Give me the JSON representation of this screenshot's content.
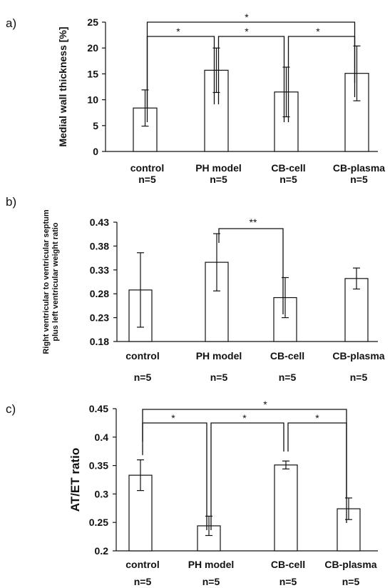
{
  "chart_data": [
    {
      "panel_label": "a)",
      "type": "bar",
      "ylabel": "Medial wall thickness [%]",
      "ylim": [
        0,
        25
      ],
      "yticks": [
        "0",
        "5",
        "10",
        "15",
        "20",
        "25"
      ],
      "categories": [
        "control",
        "PH  model",
        "CB-cell",
        "CB-plasma"
      ],
      "n_labels": [
        "n=5",
        "n=5",
        "n=5",
        "n=5"
      ],
      "values": [
        8.4,
        15.7,
        11.5,
        15.1
      ],
      "errors": [
        3.5,
        4.3,
        4.8,
        5.3
      ],
      "comparisons": [
        {
          "from": 0,
          "to": 1,
          "label": "*"
        },
        {
          "from": 1,
          "to": 2,
          "label": "*"
        },
        {
          "from": 2,
          "to": 3,
          "label": "*"
        },
        {
          "from": 0,
          "to": 3,
          "label": "*"
        }
      ]
    },
    {
      "panel_label": "b)",
      "type": "bar",
      "ylabel": [
        "Right ventricular to ventricular septum",
        "plus left ventricular weight ratio"
      ],
      "ylim": [
        0.18,
        0.43
      ],
      "yticks": [
        "0.18",
        "0.23",
        "0.28",
        "0.33",
        "0.38",
        "0.43"
      ],
      "categories": [
        "control",
        "PH  model",
        "CB-cell",
        "CB-plasma"
      ],
      "n_labels": [
        "n=5",
        "n=5",
        "n=5",
        "n=5"
      ],
      "values": [
        0.288,
        0.346,
        0.272,
        0.312
      ],
      "errors": [
        0.078,
        0.06,
        0.042,
        0.022
      ],
      "comparisons": [
        {
          "from": 1,
          "to": 2,
          "label": "**"
        }
      ]
    },
    {
      "panel_label": "c)",
      "type": "bar",
      "ylabel": "AT/ET ratio",
      "ylim": [
        0.2,
        0.45
      ],
      "yticks": [
        "0.2",
        "0.25",
        "0.3",
        "0.35",
        "0.4",
        "0.45"
      ],
      "categories": [
        "control",
        "PH model",
        "CB-cell",
        "CB-plasma"
      ],
      "n_labels": [
        "n=5",
        "n=5",
        "n=5",
        "n=5"
      ],
      "values": [
        0.333,
        0.244,
        0.351,
        0.274
      ],
      "errors": [
        0.027,
        0.017,
        0.007,
        0.019
      ],
      "comparisons": [
        {
          "from": 0,
          "to": 1,
          "label": "*"
        },
        {
          "from": 1,
          "to": 2,
          "label": "*"
        },
        {
          "from": 2,
          "to": 3,
          "label": "*"
        },
        {
          "from": 0,
          "to": 3,
          "label": "*"
        }
      ]
    }
  ]
}
